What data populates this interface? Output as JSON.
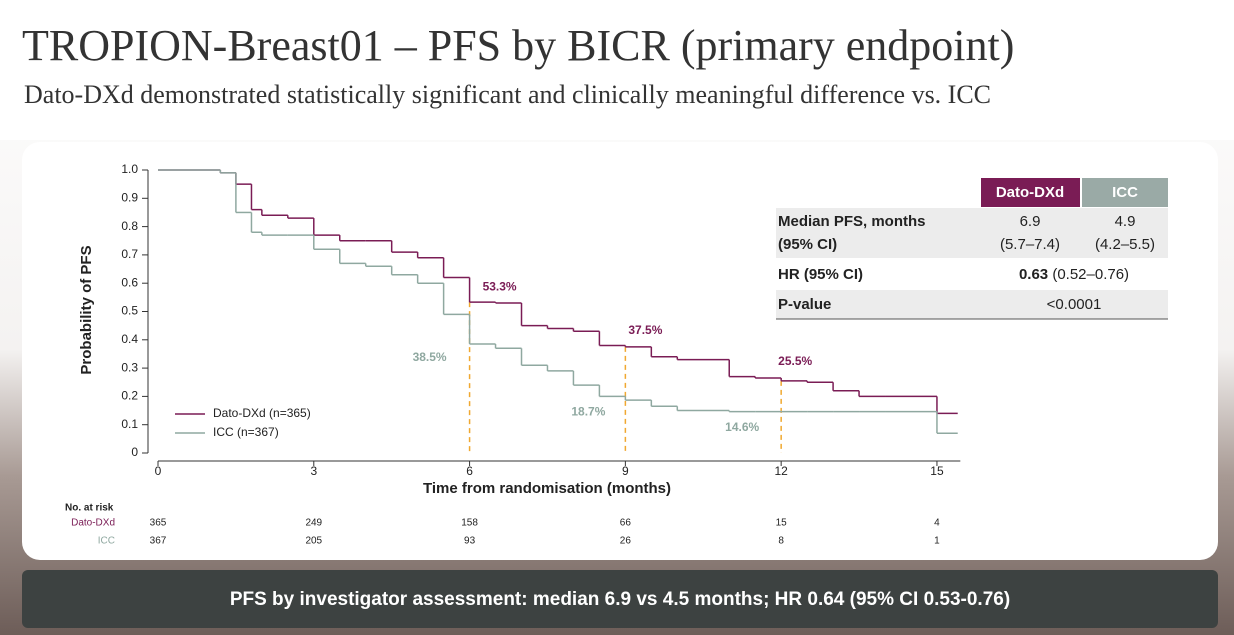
{
  "title": "TROPION-Breast01 – PFS by BICR (primary endpoint)",
  "subtitle": "Dato-DXd demonstrated statistically significant and clinically meaningful difference vs. ICC",
  "chart_data": {
    "type": "line",
    "step": true,
    "x_label": "Time from randomisation (months)",
    "y_label": "Probability of PFS",
    "x": [
      0,
      1.2,
      1.5,
      1.8,
      2,
      2.5,
      3,
      3.5,
      4,
      4.5,
      5,
      5.5,
      6,
      6.5,
      7,
      7.5,
      8,
      8.5,
      9,
      9.5,
      10,
      11,
      11.5,
      12,
      12.5,
      13,
      13.5,
      14,
      15,
      15.4
    ],
    "series": [
      {
        "name": "Dato-DXd (n=365)",
        "color": "#7a1c55",
        "values": [
          1,
          0.99,
          0.95,
          0.86,
          0.84,
          0.83,
          0.77,
          0.75,
          0.75,
          0.71,
          0.69,
          0.62,
          0.533,
          0.53,
          0.45,
          0.44,
          0.43,
          0.38,
          0.375,
          0.34,
          0.33,
          0.27,
          0.265,
          0.255,
          0.25,
          0.22,
          0.2,
          0.2,
          0.14,
          0.14
        ]
      },
      {
        "name": "ICC (n=367)",
        "color": "#8fa8a0",
        "values": [
          1,
          0.99,
          0.85,
          0.78,
          0.77,
          0.77,
          0.72,
          0.67,
          0.66,
          0.63,
          0.6,
          0.49,
          0.385,
          0.37,
          0.31,
          0.29,
          0.24,
          0.2,
          0.187,
          0.165,
          0.15,
          0.146,
          0.146,
          0.146,
          0.146,
          0.146,
          0.146,
          0.146,
          0.07,
          0.07
        ]
      }
    ],
    "annotations": [
      {
        "series": 0,
        "x": 6,
        "value": 0.533,
        "label": "53.3%"
      },
      {
        "series": 1,
        "x": 6,
        "value": 0.385,
        "label": "38.5%"
      },
      {
        "series": 0,
        "x": 9,
        "value": 0.375,
        "label": "37.5%"
      },
      {
        "series": 1,
        "x": 9,
        "value": 0.187,
        "label": "18.7%"
      },
      {
        "series": 0,
        "x": 12,
        "value": 0.255,
        "label": "25.5%"
      },
      {
        "series": 1,
        "x": 12,
        "value": 0.146,
        "label": "14.6%"
      }
    ],
    "milestone_color": "#f0a830",
    "xlim": [
      0,
      15.45
    ],
    "xticks": [
      0,
      3,
      6,
      9,
      12,
      15
    ],
    "ylim": [
      0,
      1
    ],
    "yticks": [
      0,
      0.1,
      0.2,
      0.3,
      0.4,
      0.5,
      0.6,
      0.7,
      0.8,
      0.9,
      {
        "value": 1,
        "label": "1.0"
      }
    ],
    "legend": "lower-left"
  },
  "summary_table": {
    "headers": [
      "Dato-DXd",
      "ICC"
    ],
    "rows": [
      {
        "label": [
          "Median PFS, months",
          "(95% CI)"
        ],
        "cells": [
          [
            "6.9",
            "(5.7–7.4)"
          ],
          [
            "4.9",
            "(4.2–5.5)"
          ]
        ]
      },
      {
        "label": [
          "HR (95% CI)"
        ],
        "value_bold": "0.63",
        "value_rest": " (0.52–0.76)"
      },
      {
        "label": [
          "P-value"
        ],
        "value": "<0.0001"
      }
    ]
  },
  "risk_table": {
    "title": "No. at risk",
    "rows": [
      {
        "name": "Dato-DXd",
        "values": [
          365,
          249,
          158,
          66,
          15,
          4
        ]
      },
      {
        "name": "ICC",
        "values": [
          367,
          205,
          93,
          26,
          8,
          1
        ]
      }
    ]
  },
  "footer": "PFS by investigator assessment: median 6.9 vs 4.5 months; HR 0.64 (95% CI 0.53-0.76)"
}
